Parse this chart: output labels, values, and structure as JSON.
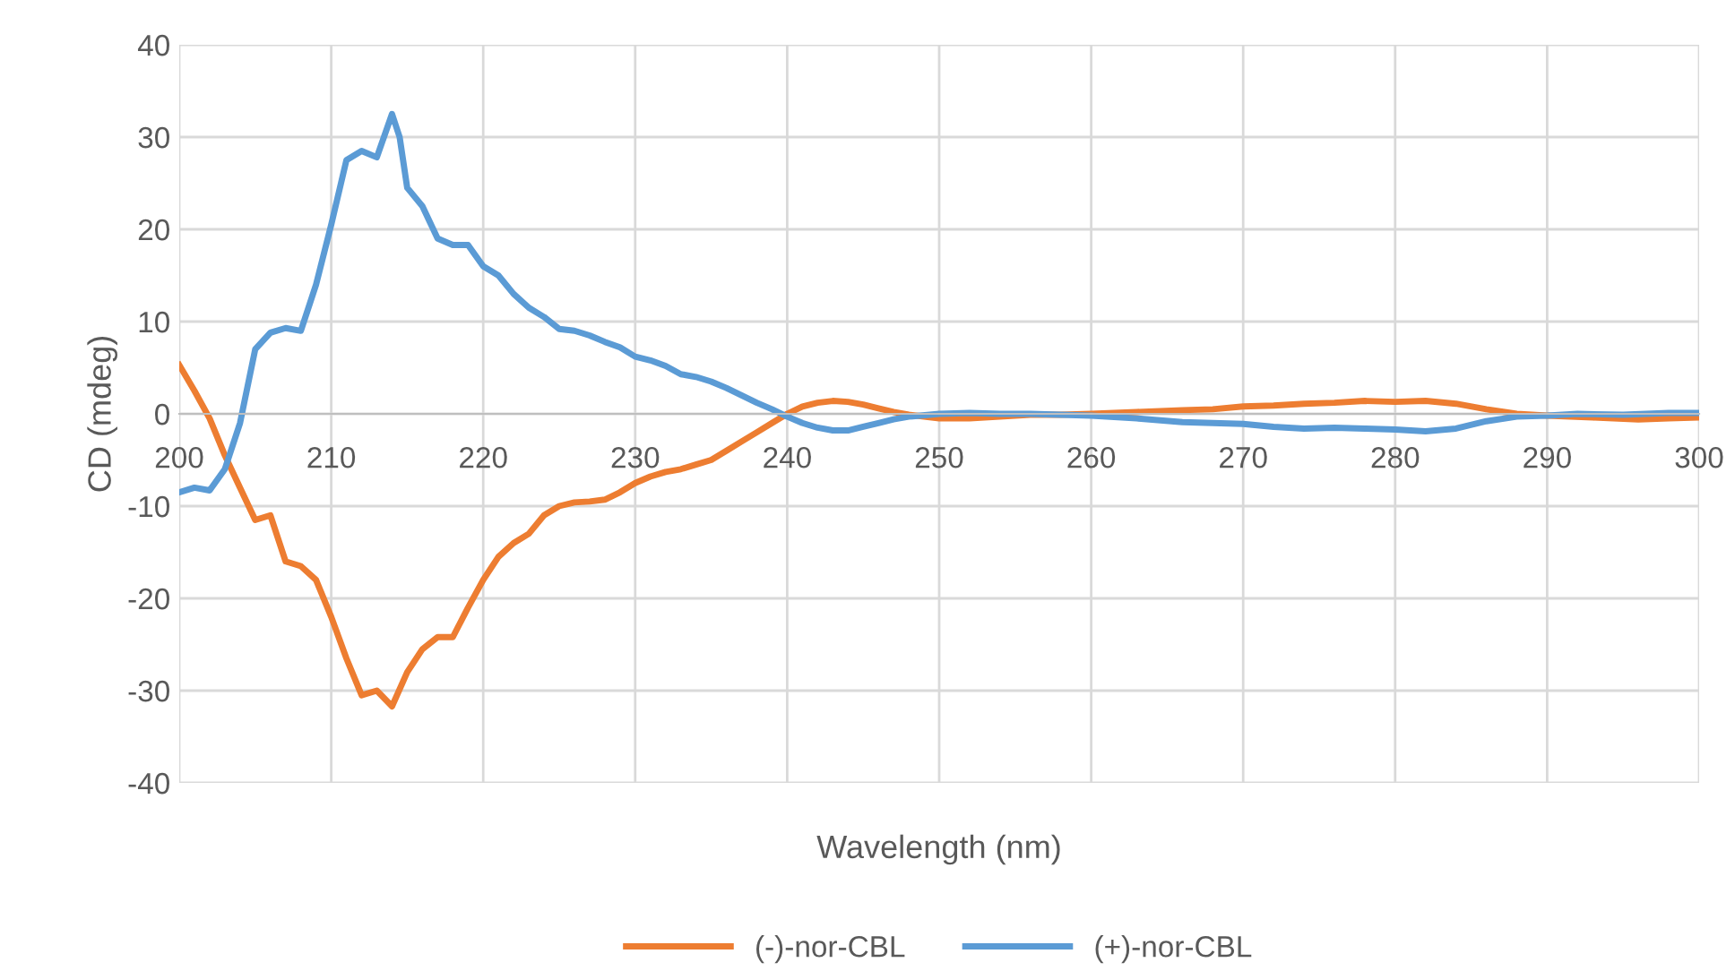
{
  "chart_data": {
    "type": "line",
    "xlabel": "Wavelength (nm)",
    "ylabel": "CD (mdeg)",
    "xlim": [
      200,
      300
    ],
    "ylim": [
      -40,
      40
    ],
    "xticks": [
      200,
      210,
      220,
      230,
      240,
      250,
      260,
      270,
      280,
      290,
      300
    ],
    "yticks": [
      -40,
      -30,
      -20,
      -10,
      0,
      10,
      20,
      30,
      40
    ],
    "grid": true,
    "legend": "bottom",
    "marker": "none",
    "line_style": "solid",
    "series": [
      {
        "name": "(-)-nor-CBL",
        "color": "#ed7d31",
        "x": [
          200,
          201,
          202,
          203,
          204,
          205,
          206,
          207,
          208,
          209,
          210,
          211,
          212,
          213,
          214,
          215,
          216,
          217,
          218,
          219,
          220,
          221,
          222,
          223,
          224,
          225,
          226,
          227,
          228,
          229,
          230,
          231,
          232,
          233,
          234,
          235,
          236,
          237,
          238,
          239,
          240,
          241,
          242,
          243,
          244,
          245,
          246,
          247,
          248,
          250,
          252,
          254,
          256,
          258,
          260,
          263,
          266,
          268,
          270,
          272,
          274,
          276,
          278,
          280,
          282,
          284,
          286,
          288,
          290,
          293,
          296,
          298,
          300
        ],
        "values": [
          5.3,
          2.5,
          -0.5,
          -4.5,
          -8,
          -11.5,
          -11,
          -16,
          -16.5,
          -18,
          -22,
          -26.5,
          -30.5,
          -30,
          -31.7,
          -28,
          -25.5,
          -24.2,
          -24.2,
          -21,
          -18,
          -15.5,
          -14,
          -13,
          -11,
          -10,
          -9.6,
          -9.5,
          -9.3,
          -8.5,
          -7.5,
          -6.8,
          -6.3,
          -6,
          -5.5,
          -5,
          -4,
          -3,
          -2,
          -1,
          0,
          0.8,
          1.2,
          1.4,
          1.3,
          1,
          0.6,
          0.2,
          -0.1,
          -0.5,
          -0.5,
          -0.3,
          -0.1,
          -0.1,
          0,
          0.2,
          0.4,
          0.5,
          0.8,
          0.9,
          1.1,
          1.2,
          1.4,
          1.3,
          1.4,
          1.1,
          0.5,
          0,
          -0.2,
          -0.4,
          -0.6,
          -0.5,
          -0.4
        ]
      },
      {
        "name": "(+)-nor-CBL",
        "color": "#5b9bd5",
        "x": [
          200,
          201,
          202,
          203,
          204,
          205,
          206,
          207,
          208,
          209,
          210,
          211,
          212,
          213,
          214,
          214.5,
          215,
          216,
          217,
          218,
          219,
          220,
          221,
          222,
          223,
          224,
          225,
          226,
          227,
          228,
          229,
          230,
          231,
          232,
          233,
          234,
          235,
          236,
          237,
          238,
          239,
          240,
          241,
          242,
          243,
          244,
          245,
          246,
          247,
          248,
          250,
          252,
          254,
          256,
          258,
          260,
          263,
          266,
          268,
          270,
          272,
          274,
          276,
          278,
          280,
          282,
          284,
          286,
          288,
          290,
          292,
          295,
          298,
          300
        ],
        "values": [
          -8.5,
          -8,
          -8.3,
          -6,
          -1,
          7,
          8.8,
          9.3,
          9,
          14,
          20.5,
          27.5,
          28.5,
          27.8,
          32.5,
          30,
          24.5,
          22.5,
          19,
          18.3,
          18.3,
          16,
          15,
          13,
          11.5,
          10.5,
          9.2,
          9,
          8.5,
          7.8,
          7.2,
          6.2,
          5.8,
          5.2,
          4.3,
          4,
          3.5,
          2.8,
          2,
          1.2,
          0.5,
          -0.3,
          -1,
          -1.5,
          -1.8,
          -1.8,
          -1.4,
          -1,
          -0.6,
          -0.3,
          0,
          0.1,
          0,
          0,
          -0.1,
          -0.2,
          -0.5,
          -0.9,
          -1,
          -1.1,
          -1.4,
          -1.6,
          -1.5,
          -1.6,
          -1.7,
          -1.9,
          -1.6,
          -0.8,
          -0.3,
          -0.2,
          0,
          -0.1,
          0.1,
          0.1
        ]
      }
    ]
  }
}
